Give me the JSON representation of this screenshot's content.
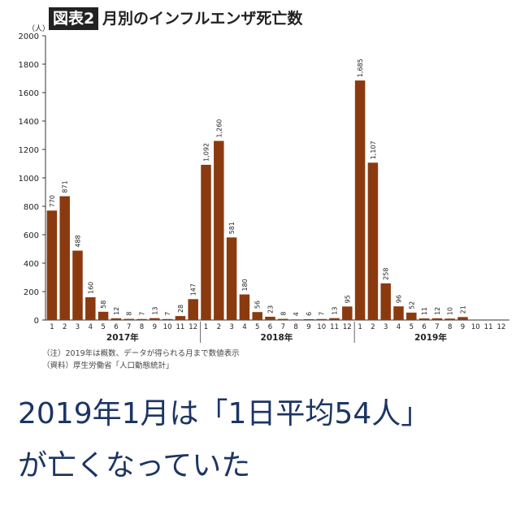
{
  "figure": {
    "badge": "図表2",
    "title": "月別のインフルエンザ死亡数",
    "note1": "（注）2019年は概数、データが得られる月まで数値表示",
    "note2": "（資料）厚生労働省「人口動態統計」"
  },
  "headline": {
    "line1": "2019年1月は「1日平均54人」",
    "line2": "が亡くなっていた"
  },
  "colors": {
    "bar": "#8b3a10",
    "axis": "#333333"
  },
  "chart_data": {
    "type": "bar",
    "ylabel": "（人）",
    "ylim": [
      0,
      2000
    ],
    "yticks": [
      0,
      200,
      400,
      600,
      800,
      1000,
      1200,
      1400,
      1600,
      1800,
      2000
    ],
    "groups": [
      {
        "year_label": "2017年",
        "months": [
          "1",
          "2",
          "3",
          "4",
          "5",
          "6",
          "7",
          "8",
          "9",
          "10",
          "11",
          "12"
        ],
        "values": [
          770,
          871,
          488,
          160,
          58,
          12,
          8,
          7,
          13,
          7,
          28,
          147
        ],
        "labels": [
          "770",
          "871",
          "488",
          "160",
          "58",
          "12",
          "8",
          "7",
          "13",
          "7",
          "28",
          "147"
        ]
      },
      {
        "year_label": "2018年",
        "months": [
          "1",
          "2",
          "3",
          "4",
          "5",
          "6",
          "7",
          "8",
          "9",
          "10",
          "11",
          "12"
        ],
        "values": [
          1092,
          1260,
          581,
          180,
          56,
          23,
          8,
          4,
          6,
          7,
          13,
          95
        ],
        "labels": [
          "1,092",
          "1,260",
          "581",
          "180",
          "56",
          "23",
          "8",
          "4",
          "6",
          "7",
          "13",
          "95"
        ]
      },
      {
        "year_label": "2019年",
        "months": [
          "1",
          "2",
          "3",
          "4",
          "5",
          "6",
          "7",
          "8",
          "9",
          "10",
          "11",
          "12"
        ],
        "values": [
          1685,
          1107,
          258,
          96,
          52,
          11,
          12,
          10,
          21,
          null,
          null,
          null
        ],
        "labels": [
          "1,685",
          "1,107",
          "258",
          "96",
          "52",
          "11",
          "12",
          "10",
          "21",
          "",
          "",
          ""
        ]
      }
    ]
  }
}
